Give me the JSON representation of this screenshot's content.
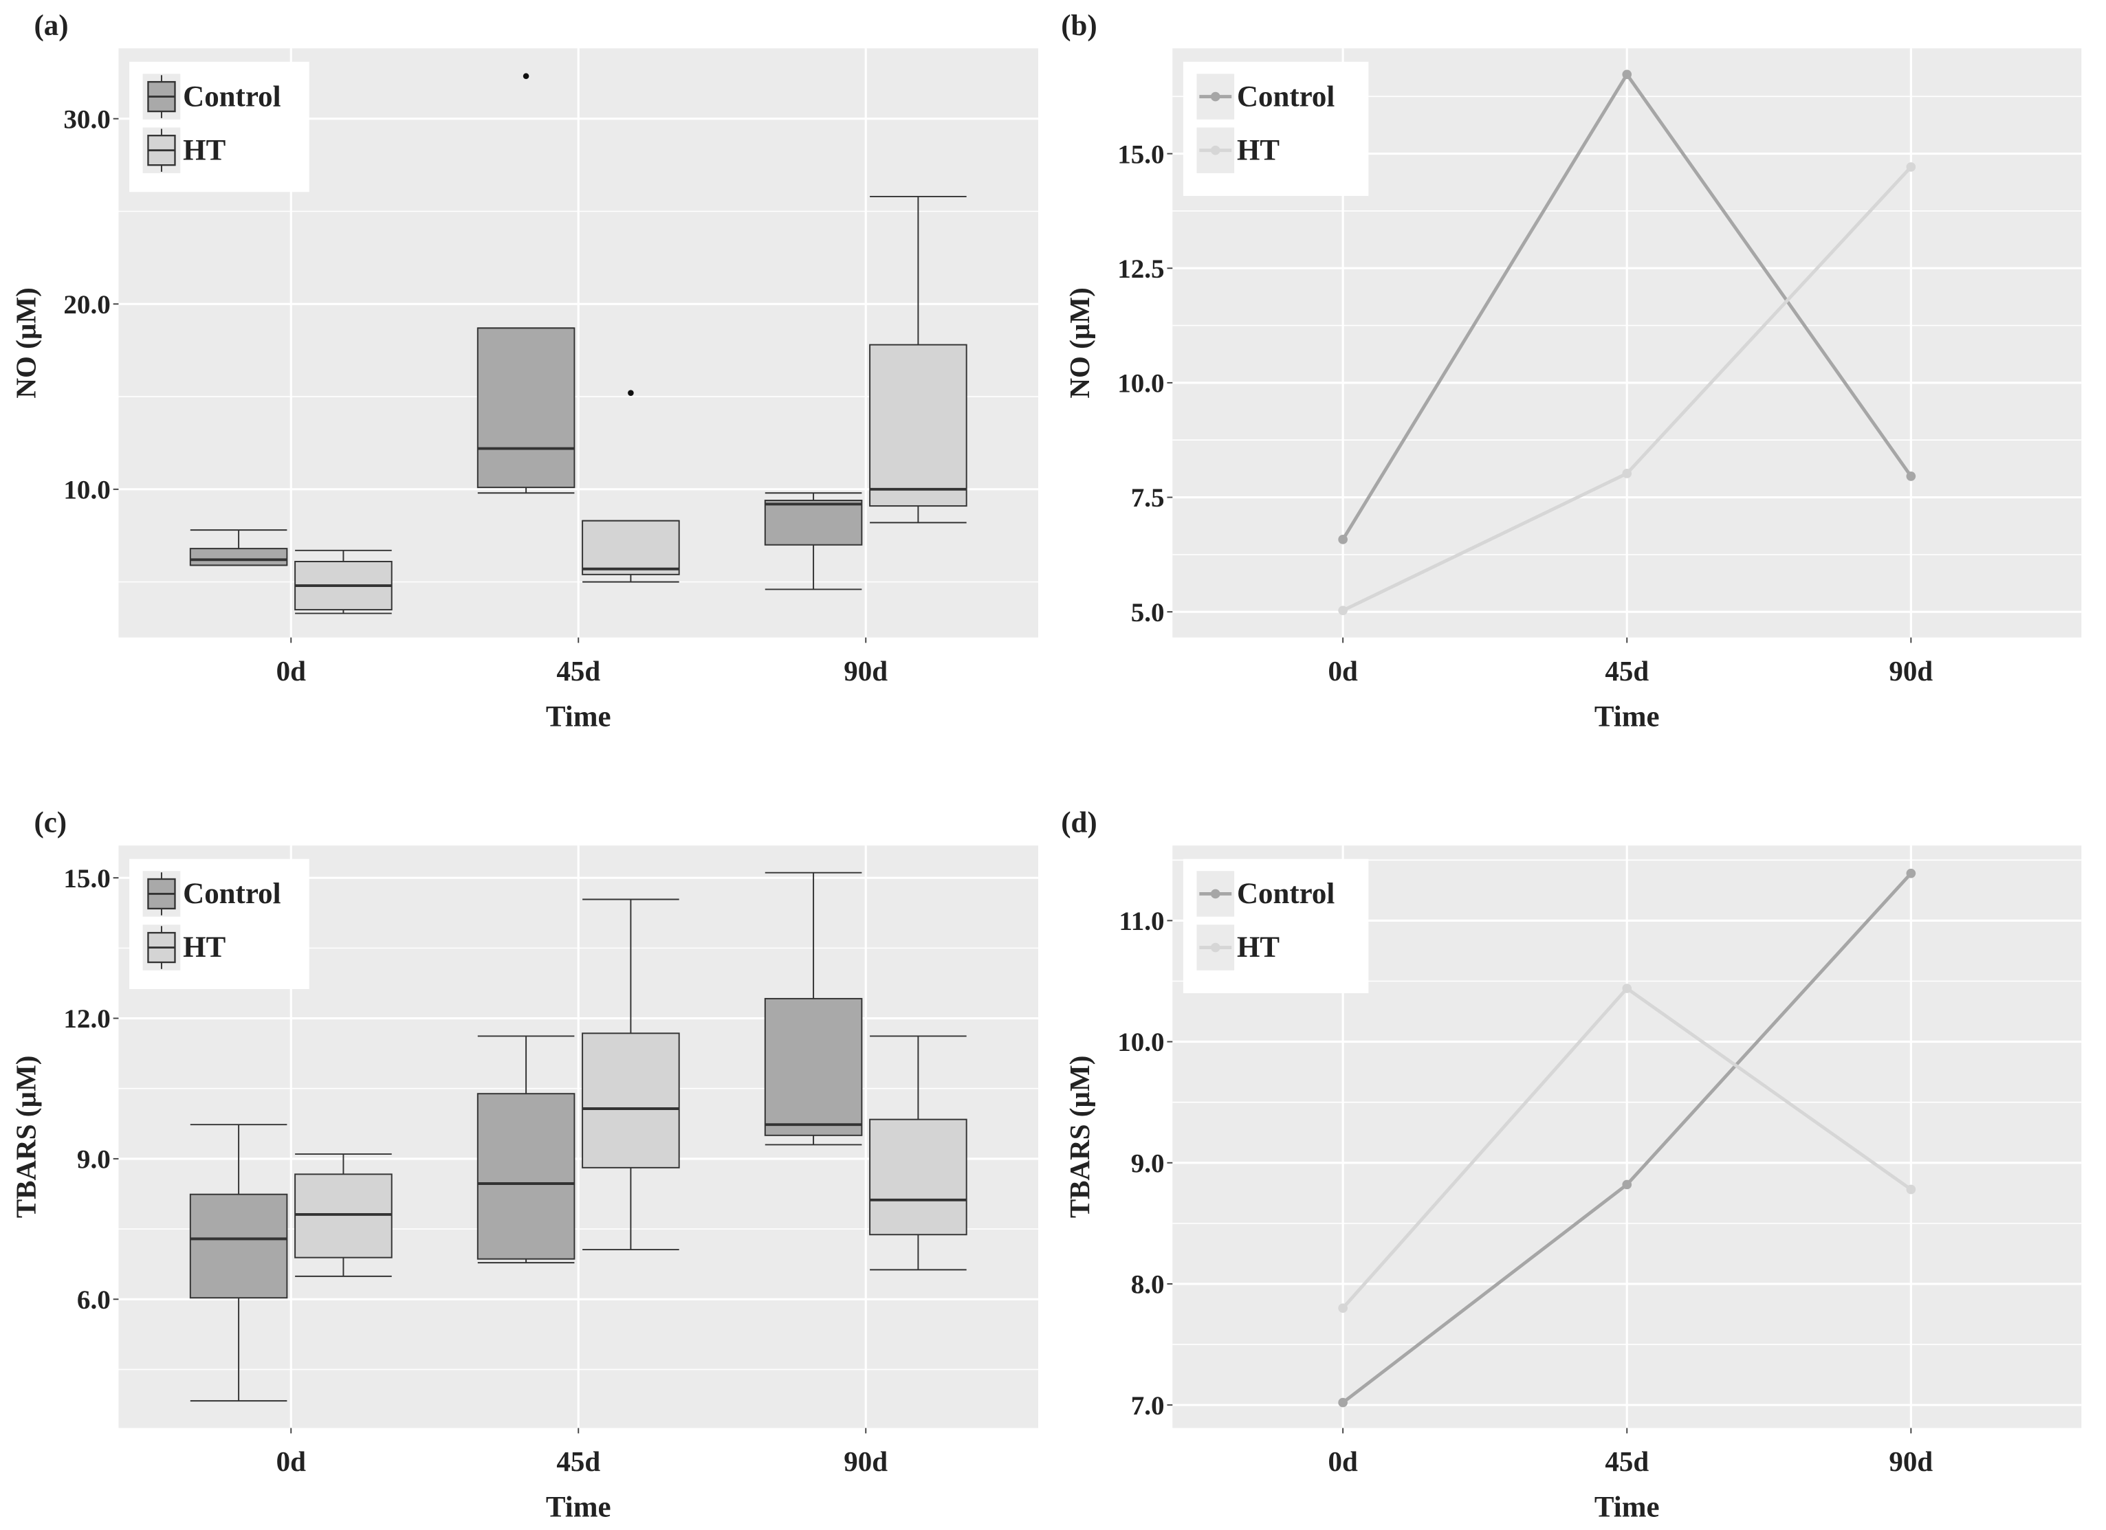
{
  "chart_data": [
    {
      "panel": "(a)",
      "type": "boxplot",
      "xlabel": "Time",
      "ylabel": "NO (µM)",
      "categories": [
        "0d",
        "45d",
        "90d"
      ],
      "yticks": [
        10.0,
        20.0,
        30.0
      ],
      "ytick_labels": [
        "10.0",
        "20.0",
        "30.0"
      ],
      "ylim": [
        2.0,
        33.8
      ],
      "grid": true,
      "legend": "top-left",
      "series": [
        {
          "name": "Control",
          "color": "#a9a9a9",
          "boxes": [
            {
              "lower": 5.9,
              "q1": 5.9,
              "median": 6.2,
              "q3": 6.8,
              "upper": 7.8,
              "outliers": []
            },
            {
              "lower": 9.8,
              "q1": 10.1,
              "median": 12.2,
              "q3": 18.7,
              "upper": 18.7,
              "outliers": [
                32.3
              ]
            },
            {
              "lower": 4.6,
              "q1": 7.0,
              "median": 9.2,
              "q3": 9.4,
              "upper": 9.8,
              "outliers": []
            }
          ]
        },
        {
          "name": "HT",
          "color": "#d4d4d4",
          "boxes": [
            {
              "lower": 3.3,
              "q1": 3.5,
              "median": 4.8,
              "q3": 6.1,
              "upper": 6.7,
              "outliers": []
            },
            {
              "lower": 5.0,
              "q1": 5.4,
              "median": 5.7,
              "q3": 8.3,
              "upper": 8.3,
              "outliers": [
                15.2
              ]
            },
            {
              "lower": 8.2,
              "q1": 9.1,
              "median": 10.0,
              "q3": 17.8,
              "upper": 25.8,
              "outliers": []
            }
          ]
        }
      ]
    },
    {
      "panel": "(b)",
      "type": "line",
      "xlabel": "Time",
      "ylabel": "NO (µM)",
      "categories": [
        "0d",
        "45d",
        "90d"
      ],
      "yticks": [
        5.0,
        7.5,
        10.0,
        12.5,
        15.0
      ],
      "ytick_labels": [
        "5.0",
        "7.5",
        "10.0",
        "12.5",
        "15.0"
      ],
      "ylim": [
        4.44,
        17.3
      ],
      "grid": true,
      "legend": "top-left",
      "series": [
        {
          "name": "Control",
          "color": "#a6a6a6",
          "values": [
            6.58,
            16.73,
            7.96
          ]
        },
        {
          "name": "HT",
          "color": "#d6d6d6",
          "values": [
            5.03,
            8.02,
            14.71
          ]
        }
      ]
    },
    {
      "panel": "(c)",
      "type": "boxplot",
      "xlabel": "Time",
      "ylabel": "TBARS (µM)",
      "categories": [
        "0d",
        "45d",
        "90d"
      ],
      "yticks": [
        6.0,
        9.0,
        12.0,
        15.0
      ],
      "ytick_labels": [
        "6.0",
        "9.0",
        "12.0",
        "15.0"
      ],
      "ylim": [
        3.25,
        15.69
      ],
      "grid": true,
      "legend": "top-left",
      "series": [
        {
          "name": "Control",
          "color": "#a9a9a9",
          "boxes": [
            {
              "lower": 3.83,
              "q1": 6.03,
              "median": 7.29,
              "q3": 8.24,
              "upper": 9.73,
              "outliers": []
            },
            {
              "lower": 6.78,
              "q1": 6.86,
              "median": 8.47,
              "q3": 10.39,
              "upper": 11.62,
              "outliers": []
            },
            {
              "lower": 9.3,
              "q1": 9.5,
              "median": 9.73,
              "q3": 12.42,
              "upper": 15.11,
              "outliers": []
            }
          ]
        },
        {
          "name": "HT",
          "color": "#d4d4d4",
          "boxes": [
            {
              "lower": 6.49,
              "q1": 6.89,
              "median": 7.81,
              "q3": 8.67,
              "upper": 9.1,
              "outliers": []
            },
            {
              "lower": 7.06,
              "q1": 8.81,
              "median": 10.07,
              "q3": 11.68,
              "upper": 14.54,
              "outliers": []
            },
            {
              "lower": 6.63,
              "q1": 7.38,
              "median": 8.12,
              "q3": 9.84,
              "upper": 11.62,
              "outliers": []
            }
          ]
        }
      ]
    },
    {
      "panel": "(d)",
      "type": "line",
      "xlabel": "Time",
      "ylabel": "TBARS (µM)",
      "categories": [
        "0d",
        "45d",
        "90d"
      ],
      "yticks": [
        7.0,
        8.0,
        9.0,
        10.0,
        11.0
      ],
      "ytick_labels": [
        "7.0",
        "8.0",
        "9.0",
        "10.0",
        "11.0"
      ],
      "ylim": [
        6.81,
        11.62
      ],
      "grid": true,
      "legend": "top-left",
      "series": [
        {
          "name": "Control",
          "color": "#a6a6a6",
          "values": [
            7.02,
            8.82,
            11.39
          ]
        },
        {
          "name": "HT",
          "color": "#d6d6d6",
          "values": [
            7.8,
            10.44,
            8.78
          ]
        }
      ]
    }
  ],
  "colors": {
    "panel_background": "#ebebeb",
    "grid": "#ffffff"
  }
}
